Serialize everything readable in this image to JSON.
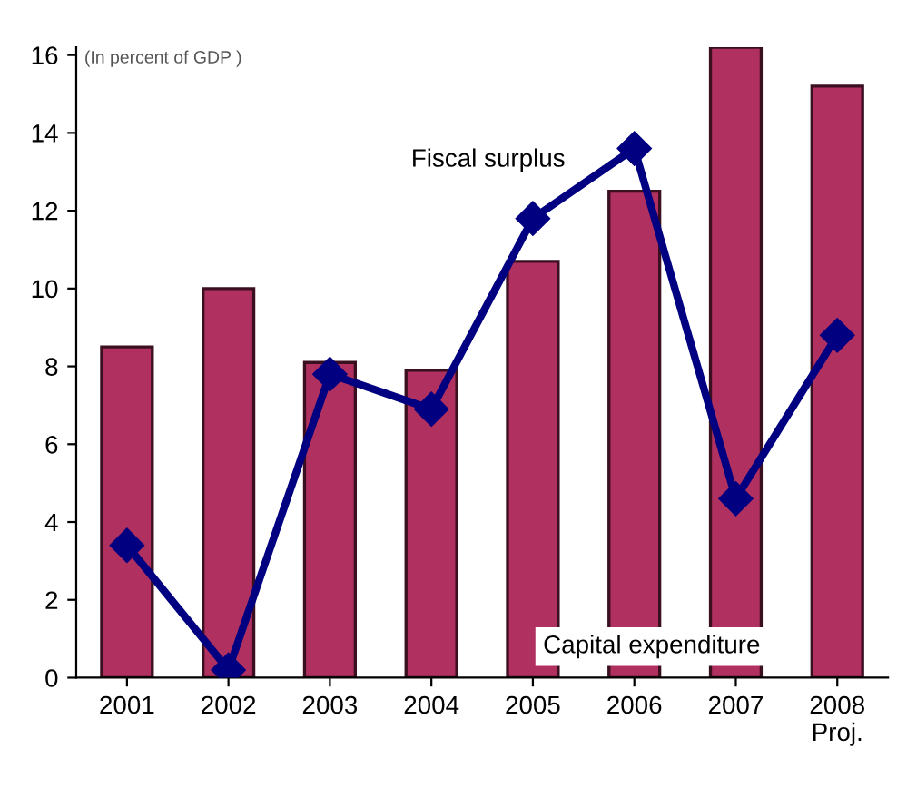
{
  "chart_data": {
    "type": "bar",
    "categories": [
      "2001",
      "2002",
      "2003",
      "2004",
      "2005",
      "2006",
      "2007",
      "2008\nProj."
    ],
    "series": [
      {
        "name": "Capital expenditure",
        "color": "#b03060",
        "values": [
          8.5,
          10.0,
          8.1,
          7.9,
          10.7,
          12.5,
          16.2,
          15.2
        ]
      },
      {
        "name": "Fiscal surplus",
        "type": "line",
        "color": "#000080",
        "marker": "diamond",
        "values": [
          3.4,
          0.2,
          7.8,
          6.9,
          11.8,
          13.6,
          4.6,
          8.8
        ]
      }
    ],
    "annotations": [
      "(In percent of GDP )"
    ],
    "ylim": [
      0,
      16.2
    ],
    "yticks": [
      0,
      2,
      4,
      6,
      8,
      10,
      12,
      14,
      16
    ],
    "grid": false,
    "legend": false
  }
}
